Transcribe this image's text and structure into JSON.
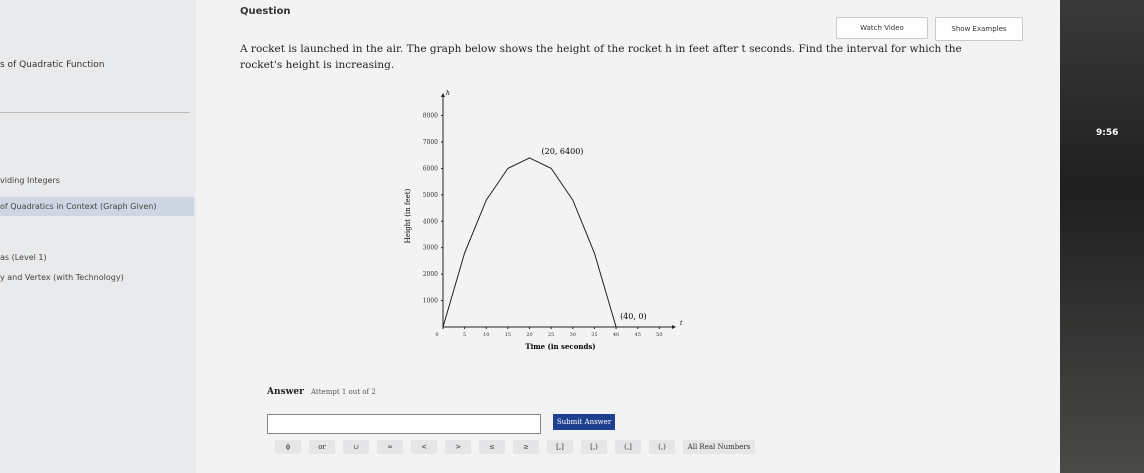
{
  "header": {
    "title": "Question",
    "watch_video": "Watch Video",
    "show_examples": "Show Examples"
  },
  "sidebar": {
    "items": [
      "s of Quadratic Function",
      "viding Integers",
      "of Quadratics in Context (Graph Given)",
      "as (Level 1)",
      "y and Vertex (with Technology)"
    ]
  },
  "question": {
    "text": "A rocket is launched in the air. The graph below shows the height of the rocket h in feet after t seconds. Find the interval for which the rocket's height is increasing."
  },
  "graph": {
    "type": "line",
    "x_label": "Time (in seconds)",
    "y_label": "Height (in feet)",
    "x_axis_letter": "t",
    "y_axis_letter": "h",
    "x": [
      0,
      5,
      10,
      15,
      20,
      25,
      30,
      35,
      40
    ],
    "values": [
      0,
      2800,
      4800,
      6000,
      6400,
      6000,
      4800,
      2800,
      0
    ],
    "color": "#222222",
    "xlim": [
      0,
      52
    ],
    "ylim": [
      0,
      8400
    ],
    "xticks": [
      0,
      5,
      10,
      15,
      20,
      25,
      30,
      35,
      40,
      45,
      50
    ],
    "yticks": [
      1000,
      2000,
      3000,
      4000,
      5000,
      6000,
      7000,
      8000
    ],
    "annotations": [
      "(20, 6400)",
      "(40, 0)"
    ]
  },
  "answer": {
    "label": "Answer",
    "attempt": "Attempt 1 out of 2",
    "submit": "Submit Answer",
    "keys": [
      "ϕ",
      "or",
      "∪",
      "∞",
      "<",
      ">",
      "≤",
      "≥",
      "[,]",
      "[,)",
      "(,]",
      "(,)",
      "All Real Numbers"
    ]
  },
  "system": {
    "time": "9:56"
  }
}
